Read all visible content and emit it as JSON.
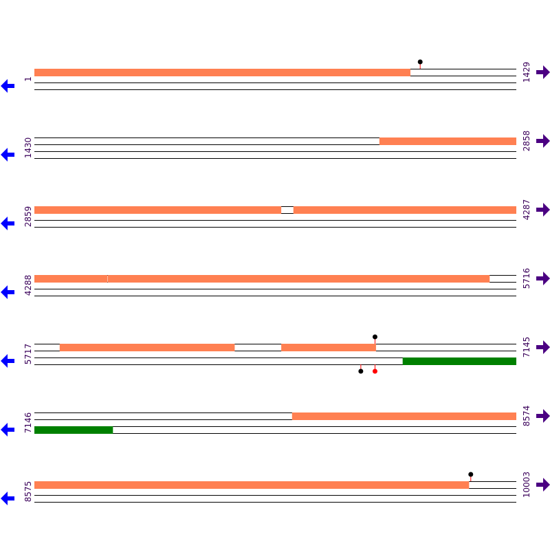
{
  "colors": {
    "orf_forward": "#ff8052",
    "orf_reverse": "#008000",
    "line": "#000000",
    "label": "#3a005a",
    "reverse_arrow": "#0000ff",
    "forward_arrow": "#4b0082",
    "marker_black": "#000000",
    "marker_red": "#ff0000"
  },
  "icons": {
    "left": "arrow-left-icon",
    "right": "arrow-right-icon",
    "marker": "lollipop-marker-icon"
  },
  "rows": [
    {
      "start": 1,
      "end": 1429,
      "start_label": "1",
      "end_label": "1429",
      "features": [
        {
          "track": "upper",
          "from": 1,
          "to": 1115
        }
      ],
      "markers": [
        {
          "pos": 1145,
          "strand": "top",
          "color": "#000000"
        }
      ]
    },
    {
      "start": 1430,
      "end": 2858,
      "start_label": "1430",
      "end_label": "2858",
      "features": [
        {
          "track": "upper",
          "from": 2453,
          "to": 2858
        }
      ],
      "markers": []
    },
    {
      "start": 2859,
      "end": 4287,
      "start_label": "2859",
      "end_label": "4287",
      "features": [
        {
          "track": "upper",
          "from": 2859,
          "to": 3590
        },
        {
          "track": "upper",
          "from": 3627,
          "to": 4287
        }
      ],
      "markers": []
    },
    {
      "start": 4288,
      "end": 5716,
      "start_label": "4288",
      "end_label": "5716",
      "features": [
        {
          "track": "upper",
          "from": 4288,
          "to": 4504
        },
        {
          "track": "upper",
          "from": 4506,
          "to": 5637
        }
      ],
      "markers": []
    },
    {
      "start": 5717,
      "end": 7145,
      "start_label": "5717",
      "end_label": "7145",
      "features": [
        {
          "track": "upper",
          "from": 5792,
          "to": 6310
        },
        {
          "track": "upper",
          "from": 6449,
          "to": 6729
        },
        {
          "track": "lower",
          "from": 6809,
          "to": 7145
        }
      ],
      "markers": [
        {
          "pos": 6727,
          "strand": "top",
          "color": "#000000"
        },
        {
          "pos": 6685,
          "strand": "bottom",
          "color": "#000000"
        },
        {
          "pos": 6727,
          "strand": "bottom",
          "color": "#ff0000"
        }
      ]
    },
    {
      "start": 7146,
      "end": 8574,
      "start_label": "7146",
      "end_label": "8574",
      "features": [
        {
          "track": "upper",
          "from": 7910,
          "to": 8574
        },
        {
          "track": "lower",
          "from": 7146,
          "to": 7378
        }
      ],
      "markers": []
    },
    {
      "start": 8575,
      "end": 10003,
      "start_label": "8575",
      "end_label": "10003",
      "features": [
        {
          "track": "upper",
          "from": 8575,
          "to": 9863
        }
      ],
      "markers": [
        {
          "pos": 9869,
          "strand": "top",
          "color": "#000000"
        }
      ]
    }
  ]
}
